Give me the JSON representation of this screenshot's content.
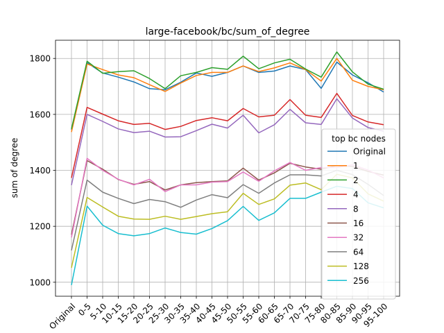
{
  "chart_data": {
    "type": "line",
    "title": "large-facebook/bc/sum_of_degree",
    "xlabel": "",
    "ylabel": "sum of degree",
    "categories": [
      "Original",
      "0-5",
      "5-10",
      "10-15",
      "15-20",
      "20-25",
      "25-30",
      "30-35",
      "35-40",
      "40-45",
      "45-50",
      "50-55",
      "55-60",
      "60-65",
      "65-70",
      "70-75",
      "75-80",
      "80-85",
      "85-90",
      "90-95",
      "95-100"
    ],
    "ylim": [
      950,
      1865
    ],
    "yticks": [
      1000,
      1200,
      1400,
      1600,
      1800
    ],
    "grid": true,
    "legend": {
      "title": "top bc nodes",
      "placement": "right"
    },
    "series": [
      {
        "name": "Original",
        "color": "#1f77b4",
        "values": [
          1545,
          1785,
          1748,
          1733,
          1716,
          1692,
          1688,
          1715,
          1748,
          1736,
          1750,
          1773,
          1750,
          1755,
          1773,
          1760,
          1693,
          1787,
          1741,
          1713,
          1680
        ]
      },
      {
        "name": "1",
        "color": "#ff7f0e",
        "values": [
          1537,
          1780,
          1760,
          1741,
          1731,
          1706,
          1682,
          1712,
          1739,
          1750,
          1750,
          1773,
          1753,
          1766,
          1784,
          1760,
          1719,
          1800,
          1722,
          1700,
          1688
        ]
      },
      {
        "name": "2",
        "color": "#2ca02c",
        "values": [
          1548,
          1790,
          1747,
          1753,
          1756,
          1728,
          1692,
          1738,
          1750,
          1767,
          1761,
          1808,
          1763,
          1784,
          1797,
          1762,
          1733,
          1823,
          1752,
          1708,
          1690
        ]
      },
      {
        "name": "4",
        "color": "#d62728",
        "values": [
          1373,
          1625,
          1601,
          1577,
          1564,
          1568,
          1546,
          1557,
          1578,
          1588,
          1577,
          1621,
          1591,
          1597,
          1653,
          1597,
          1589,
          1675,
          1596,
          1573,
          1563
        ]
      },
      {
        "name": "8",
        "color": "#9467bd",
        "values": [
          1347,
          1600,
          1575,
          1548,
          1535,
          1540,
          1519,
          1520,
          1542,
          1565,
          1551,
          1597,
          1534,
          1563,
          1618,
          1570,
          1564,
          1656,
          1587,
          1553,
          1540
        ]
      },
      {
        "name": "16",
        "color": "#8c564b",
        "values": [
          1170,
          1435,
          1404,
          1367,
          1350,
          1360,
          1330,
          1348,
          1356,
          1360,
          1362,
          1408,
          1365,
          1391,
          1425,
          1412,
          1404,
          1417,
          1414,
          1396,
          1383
        ]
      },
      {
        "name": "32",
        "color": "#e377c2",
        "values": [
          1160,
          1443,
          1400,
          1368,
          1348,
          1368,
          1324,
          1348,
          1348,
          1358,
          1360,
          1394,
          1361,
          1398,
          1428,
          1400,
          1410,
          1410,
          1420,
          1401,
          1373
        ]
      },
      {
        "name": "64",
        "color": "#7f7f7f",
        "values": [
          1114,
          1365,
          1322,
          1300,
          1281,
          1296,
          1288,
          1268,
          1294,
          1313,
          1302,
          1349,
          1318,
          1355,
          1384,
          1384,
          1380,
          1400,
          1385,
          1350,
          1310
        ]
      },
      {
        "name": "128",
        "color": "#bcbd22",
        "values": [
          1052,
          1303,
          1269,
          1236,
          1226,
          1225,
          1236,
          1225,
          1235,
          1245,
          1252,
          1318,
          1278,
          1298,
          1347,
          1355,
          1331,
          1386,
          1373,
          1316,
          1290
        ]
      },
      {
        "name": "256",
        "color": "#17becf",
        "values": [
          990,
          1272,
          1204,
          1174,
          1166,
          1174,
          1194,
          1178,
          1172,
          1192,
          1220,
          1271,
          1221,
          1248,
          1300,
          1300,
          1322,
          1343,
          1335,
          1284,
          1266
        ]
      }
    ]
  }
}
